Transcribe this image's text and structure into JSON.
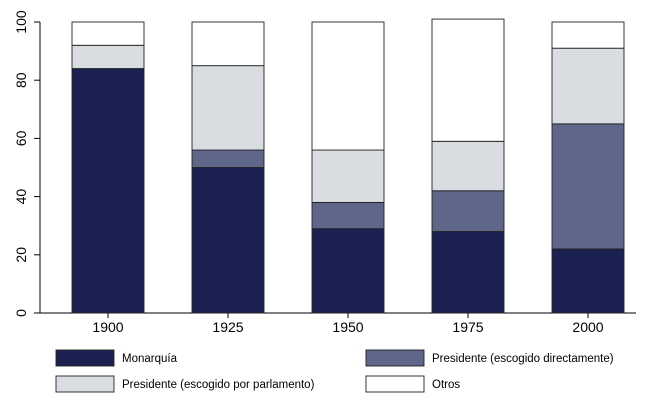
{
  "chart_data": {
    "type": "bar",
    "stacked": true,
    "categories": [
      "1900",
      "1925",
      "1950",
      "1975",
      "2000"
    ],
    "series": [
      {
        "name": "Monarquía",
        "color": "#1b2150",
        "values": [
          84,
          50,
          29,
          28,
          22
        ]
      },
      {
        "name": "Presidente (escogido directamente)",
        "color": "#5e6689",
        "values": [
          0,
          6,
          9,
          14,
          43
        ]
      },
      {
        "name": "Presidente (escogido por parlamento)",
        "color": "#d9dce1",
        "values": [
          8,
          29,
          18,
          17,
          26
        ]
      },
      {
        "name": "Otros",
        "color": "#ffffff",
        "values": [
          8,
          15,
          44,
          42,
          9
        ]
      }
    ],
    "ylim": [
      0,
      100
    ],
    "yticks": [
      0,
      20,
      40,
      60,
      80,
      100
    ],
    "grid": false,
    "legend_position": "bottom"
  }
}
